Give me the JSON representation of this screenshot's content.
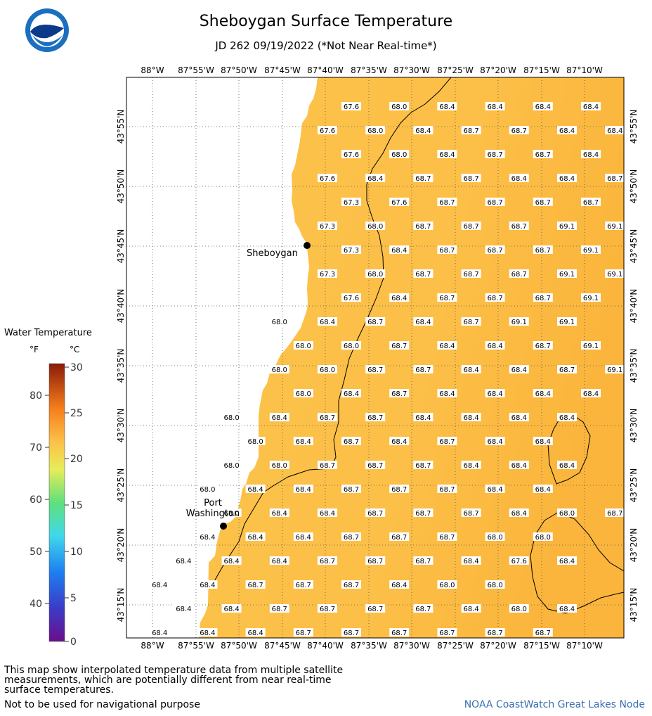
{
  "title": "Sheboygan Surface Temperature",
  "subtitle": "JD 262 09/19/2022 (*Not Near Real-time*)",
  "logo": {
    "text": "NOAA",
    "colors": {
      "outer": "#1b6fc0",
      "inner": "#ffffff",
      "bird": "#0b3a8a"
    }
  },
  "longitude_labels": [
    "88°W",
    "87°55'W",
    "87°50'W",
    "87°45'W",
    "87°40'W",
    "87°35'W",
    "87°30'W",
    "87°25'W",
    "87°20'W",
    "87°15'W",
    "87°10'W"
  ],
  "latitude_labels": [
    "43°55'N",
    "43°50'N",
    "43°45'N",
    "43°40'N",
    "43°35'N",
    "43°30'N",
    "43°25'N",
    "43°20'N",
    "43°15'N"
  ],
  "cities": [
    {
      "name": "Sheboygan"
    },
    {
      "name": "Port Washington"
    }
  ],
  "legend": {
    "title": "Water Temperature",
    "unit_f": "°F",
    "unit_c": "°C",
    "f_ticks": [
      "80",
      "70",
      "60",
      "50",
      "40"
    ],
    "c_ticks": [
      "30",
      "25",
      "20",
      "15",
      "10",
      "5",
      "0"
    ]
  },
  "temperature_rows": [
    [
      "67.6",
      "68.0",
      "68.4",
      "68.4",
      "68.4",
      "68.4"
    ],
    [
      "67.6",
      "68.0",
      "68.4",
      "68.7",
      "68.7",
      "68.4",
      "68.4"
    ],
    [
      "67.6",
      "68.0",
      "68.4",
      "68.7",
      "68.7",
      "68.4",
      "68.4"
    ],
    [
      "67.6",
      "68.4",
      "68.7",
      "68.7",
      "68.4",
      "68.4",
      "68.7"
    ],
    [
      "67.3",
      "67.6",
      "68.7",
      "68.7",
      "68.7",
      "68.7",
      "68.7"
    ],
    [
      "67.3",
      "68.0",
      "68.7",
      "68.7",
      "68.7",
      "69.1",
      "69.1"
    ],
    [
      "67.3",
      "68.4",
      "68.7",
      "68.7",
      "68.7",
      "69.1"
    ],
    [
      "67.3",
      "68.0",
      "68.7",
      "68.7",
      "68.7",
      "69.1",
      "69.1"
    ],
    [
      "67.6",
      "68.4",
      "68.7",
      "68.7",
      "68.7",
      "69.1"
    ],
    [
      "68.0",
      "68.4",
      "68.7",
      "68.4",
      "68.7",
      "69.1",
      "69.1"
    ],
    [
      "68.0",
      "68.0",
      "68.7",
      "68.4",
      "68.4",
      "68.7",
      "69.1"
    ],
    [
      "68.0",
      "68.0",
      "68.7",
      "68.7",
      "68.4",
      "68.4",
      "68.7",
      "69.1"
    ],
    [
      "68.0",
      "68.4",
      "68.7",
      "68.4",
      "68.4",
      "68.4",
      "68.4"
    ],
    [
      "68.0",
      "68.4",
      "68.7",
      "68.7",
      "68.4",
      "68.4",
      "68.4",
      "68.4"
    ],
    [
      "68.0",
      "68.4",
      "68.7",
      "68.4",
      "68.7",
      "68.4",
      "68.4"
    ],
    [
      "68.0",
      "68.0",
      "68.7",
      "68.7",
      "68.7",
      "68.4",
      "68.4",
      "68.4"
    ],
    [
      "68.0",
      "68.4",
      "68.4",
      "68.7",
      "68.7",
      "68.7",
      "68.4",
      "68.4"
    ],
    [
      "68.0",
      "68.4",
      "68.4",
      "68.7",
      "68.7",
      "68.7",
      "68.4",
      "68.0",
      "68.7"
    ],
    [
      "68.4",
      "68.4",
      "68.4",
      "68.7",
      "68.7",
      "68.7",
      "68.0",
      "68.0"
    ],
    [
      "68.4",
      "68.4",
      "68.4",
      "68.7",
      "68.7",
      "68.7",
      "68.4",
      "67.6",
      "68.4"
    ],
    [
      "68.4",
      "68.4",
      "68.7",
      "68.7",
      "68.7",
      "68.4",
      "68.0",
      "68.0"
    ],
    [
      "68.4",
      "68.4",
      "68.7",
      "68.7",
      "68.7",
      "68.7",
      "68.4",
      "68.0",
      "68.4"
    ],
    [
      "68.4",
      "68.4",
      "68.4",
      "68.7",
      "68.7",
      "68.7",
      "68.7",
      "68.7",
      "68.7"
    ]
  ],
  "disclaimer": "This map show interpolated temperature data from multiple satellite measurements, which are potentially different from near real-time surface temperatures.",
  "nav_note": "Not to be used for navigational purpose",
  "credit": "NOAA CoastWatch Great Lakes Node",
  "colors": {
    "water": "#fcc048",
    "water_warm": "#fbb83e",
    "land": "#ffffff",
    "grid": "#555555"
  }
}
